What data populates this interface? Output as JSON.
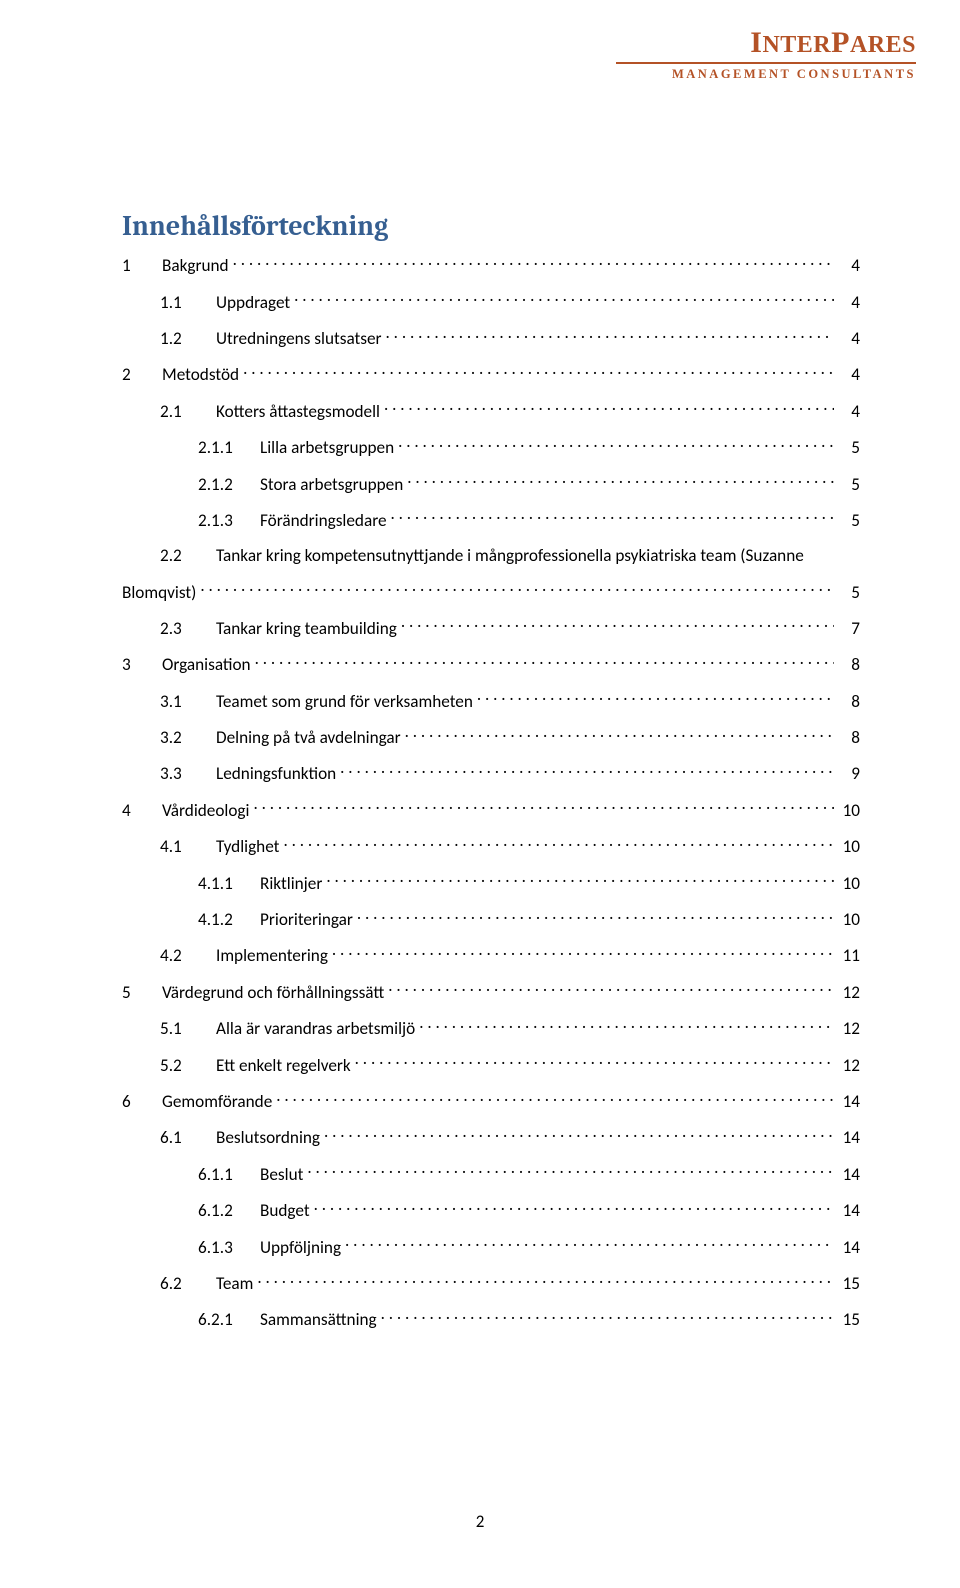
{
  "logo": {
    "name": "INTERPARES",
    "sub": "MANAGEMENT CONSULTANTS",
    "color": "#b45226"
  },
  "title": "Innehållsförteckning",
  "title_color": "#365f91",
  "toc": [
    {
      "lvl": 1,
      "num": "1",
      "label": "Bakgrund",
      "page": "4"
    },
    {
      "lvl": 2,
      "num": "1.1",
      "label": "Uppdraget",
      "page": "4"
    },
    {
      "lvl": 2,
      "num": "1.2",
      "label": "Utredningens slutsatser",
      "page": "4"
    },
    {
      "lvl": 1,
      "num": "2",
      "label": "Metodstöd",
      "page": "4"
    },
    {
      "lvl": 2,
      "num": "2.1",
      "label": "Kotters åttastegsmodell",
      "page": "4"
    },
    {
      "lvl": 3,
      "num": "2.1.1",
      "label": "Lilla arbetsgruppen",
      "page": "5"
    },
    {
      "lvl": 3,
      "num": "2.1.2",
      "label": "Stora arbetsgruppen",
      "page": "5"
    },
    {
      "lvl": 3,
      "num": "2.1.3",
      "label": "Förändringsledare",
      "page": "5"
    },
    {
      "lvl": 2,
      "num": "2.2",
      "label": "Tankar kring kompetensutnyttjande i mångprofessionella psykiatriska team (Suzanne",
      "wrap": true
    },
    {
      "lvl": 0,
      "num": "",
      "label": "Blomqvist)",
      "page": "5",
      "wrapline": true
    },
    {
      "lvl": 2,
      "num": "2.3",
      "label": "Tankar kring teambuilding",
      "page": "7"
    },
    {
      "lvl": 1,
      "num": "3",
      "label": "Organisation",
      "page": "8"
    },
    {
      "lvl": 2,
      "num": "3.1",
      "label": "Teamet som grund för verksamheten",
      "page": "8"
    },
    {
      "lvl": 2,
      "num": "3.2",
      "label": "Delning på två avdelningar",
      "page": "8"
    },
    {
      "lvl": 2,
      "num": "3.3",
      "label": "Ledningsfunktion",
      "page": "9"
    },
    {
      "lvl": 1,
      "num": "4",
      "label": "Vårdideologi",
      "page": "10"
    },
    {
      "lvl": 2,
      "num": "4.1",
      "label": "Tydlighet",
      "page": "10"
    },
    {
      "lvl": 3,
      "num": "4.1.1",
      "label": "Riktlinjer",
      "page": "10"
    },
    {
      "lvl": 3,
      "num": "4.1.2",
      "label": "Prioriteringar",
      "page": "10"
    },
    {
      "lvl": 2,
      "num": "4.2",
      "label": "Implementering",
      "page": "11"
    },
    {
      "lvl": 1,
      "num": "5",
      "label": "Värdegrund och förhållningssätt",
      "page": "12"
    },
    {
      "lvl": 2,
      "num": "5.1",
      "label": "Alla är varandras arbetsmiljö",
      "page": "12"
    },
    {
      "lvl": 2,
      "num": "5.2",
      "label": "Ett enkelt regelverk",
      "page": "12"
    },
    {
      "lvl": 1,
      "num": "6",
      "label": "Gemomförande",
      "page": "14"
    },
    {
      "lvl": 2,
      "num": "6.1",
      "label": "Beslutsordning",
      "page": "14"
    },
    {
      "lvl": 3,
      "num": "6.1.1",
      "label": "Beslut",
      "page": "14"
    },
    {
      "lvl": 3,
      "num": "6.1.2",
      "label": "Budget",
      "page": "14"
    },
    {
      "lvl": 3,
      "num": "6.1.3",
      "label": "Uppföljning",
      "page": "14"
    },
    {
      "lvl": 2,
      "num": "6.2",
      "label": "Team",
      "page": "15"
    },
    {
      "lvl": 3,
      "num": "6.2.1",
      "label": "Sammansättning",
      "page": "15"
    }
  ],
  "page_number": "2",
  "style": {
    "font_family": "Calibri",
    "title_font": "Cambria",
    "title_fontsize_pt": 20,
    "body_fontsize_pt": 12,
    "background_color": "#ffffff",
    "text_color": "#000000"
  }
}
